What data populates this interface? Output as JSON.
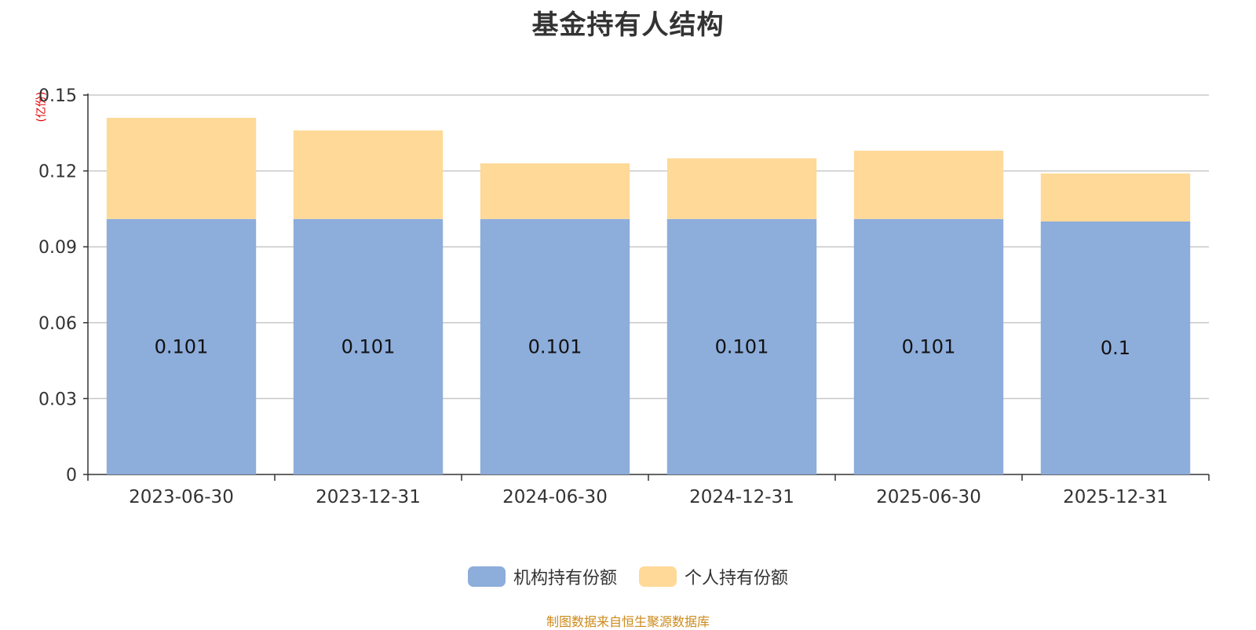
{
  "chart_data": {
    "type": "bar",
    "stacked": true,
    "title": "基金持有人结构",
    "unit_label": "(亿份)",
    "categories": [
      "2023-06-30",
      "2023-12-31",
      "2024-06-30",
      "2024-12-31",
      "2025-06-30",
      "2025-12-31"
    ],
    "series": [
      {
        "name": "机构持有份额",
        "color": "#8daddb",
        "values": [
          0.101,
          0.101,
          0.101,
          0.101,
          0.101,
          0.1
        ],
        "data_labels": [
          "0.101",
          "0.101",
          "0.101",
          "0.101",
          "0.101",
          "0.1"
        ]
      },
      {
        "name": "个人持有份额",
        "color": "#fed998",
        "values": [
          0.04,
          0.035,
          0.022,
          0.024,
          0.027,
          0.019
        ]
      }
    ],
    "ylim": [
      0,
      0.15
    ],
    "yticks": [
      0,
      0.03,
      0.06,
      0.09,
      0.12,
      0.15
    ],
    "ytick_labels": [
      "0",
      "0.03",
      "0.06",
      "0.09",
      "0.12",
      "0.15"
    ],
    "grid": true,
    "legend_position": "bottom-center"
  },
  "source_note": "制图数据来自恒生聚源数据库"
}
